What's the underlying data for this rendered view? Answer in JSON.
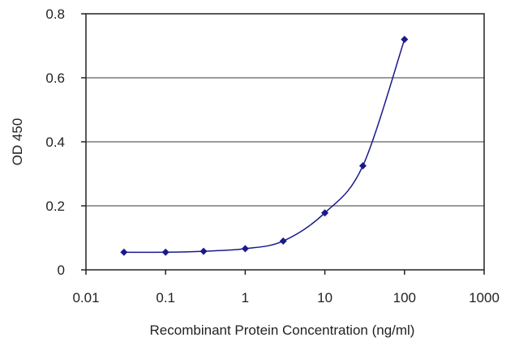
{
  "chart_data": {
    "type": "line",
    "title": "",
    "xlabel": "Recombinant Protein Concentration (ng/ml)",
    "ylabel": "OD 450",
    "x_scale": "log",
    "xlim": [
      0.01,
      1000
    ],
    "ylim": [
      0,
      0.8
    ],
    "x_ticks": [
      "0.01",
      "0.1",
      "1",
      "10",
      "100",
      "1000"
    ],
    "y_ticks": [
      "0",
      "0.2",
      "0.4",
      "0.6",
      "0.8"
    ],
    "grid": "horizontal",
    "legend": "none",
    "series": [
      {
        "x": [
          0.03,
          0.1,
          0.3,
          1,
          3,
          10,
          30,
          100
        ],
        "y": [
          0.055,
          0.055,
          0.058,
          0.066,
          0.09,
          0.178,
          0.325,
          0.72
        ],
        "color": "#1a1a8c",
        "marker": "diamond"
      }
    ]
  }
}
